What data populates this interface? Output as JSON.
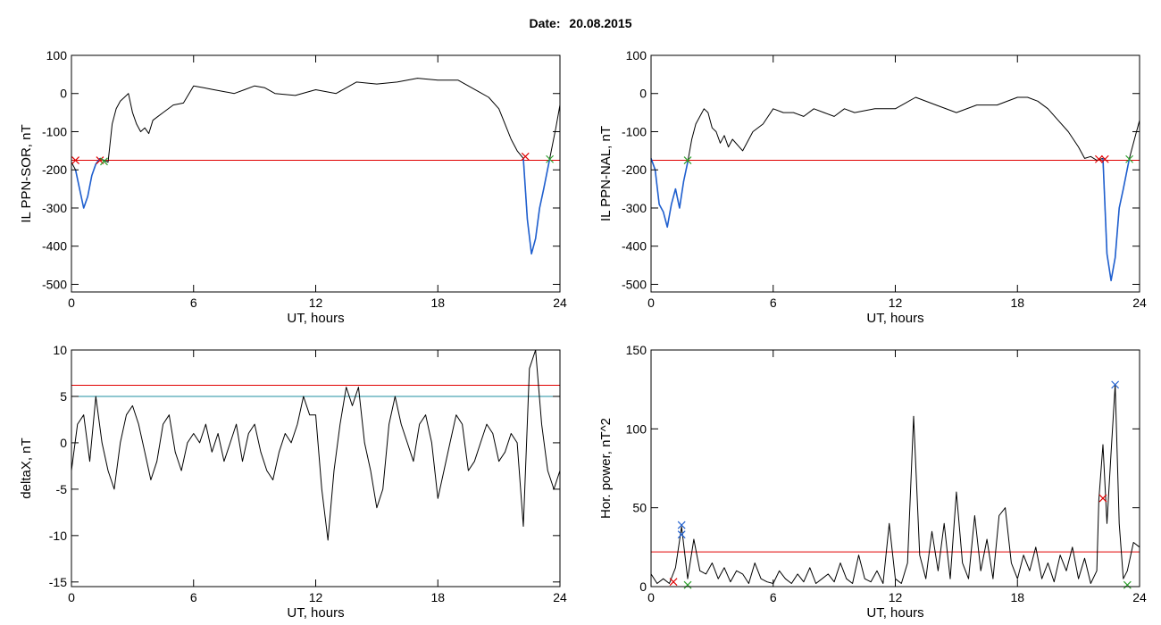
{
  "page_title": {
    "label": "Date:",
    "value": "20.08.2015"
  },
  "chart_data": [
    {
      "type": "line",
      "xlabel": "UT, hours",
      "ylabel": "IL PPN-SOR, nT",
      "xlim": [
        0,
        24
      ],
      "ylim": [
        -520,
        100
      ],
      "xticks": [
        0,
        6,
        12,
        18,
        24
      ],
      "yticks": [
        -500,
        -400,
        -300,
        -200,
        -100,
        0,
        100
      ],
      "series": [
        {
          "color": "#000000",
          "x": [
            0,
            0.2,
            0.4,
            0.6,
            0.8,
            1.0,
            1.2,
            1.4,
            1.6,
            1.8,
            2.0,
            2.2,
            2.4,
            2.6,
            2.8,
            3.0,
            3.2,
            3.4,
            3.6,
            3.8,
            4.0,
            4.5,
            5.0,
            5.5,
            6.0,
            6.5,
            7.0,
            7.5,
            8.0,
            8.5,
            9.0,
            9.5,
            10,
            11,
            12,
            13,
            14,
            15,
            16,
            17,
            18,
            19,
            19.5,
            20,
            20.5,
            21,
            21.3,
            21.6,
            21.9,
            22.2,
            22.4,
            22.6,
            22.8,
            23.0,
            23.2,
            23.5,
            23.8,
            24
          ],
          "y": [
            -180,
            -200,
            -250,
            -300,
            -270,
            -215,
            -185,
            -170,
            -175,
            -180,
            -80,
            -40,
            -20,
            -10,
            0,
            -50,
            -80,
            -100,
            -90,
            -105,
            -70,
            -50,
            -30,
            -25,
            20,
            15,
            10,
            5,
            0,
            10,
            20,
            15,
            0,
            -5,
            10,
            0,
            30,
            25,
            30,
            40,
            35,
            35,
            20,
            5,
            -10,
            -40,
            -80,
            -120,
            -150,
            -170,
            -330,
            -420,
            -380,
            -300,
            -250,
            -170,
            -90,
            -30
          ]
        },
        {
          "color": "#1f5fcf",
          "x": [
            0.2,
            0.4,
            0.6,
            0.8,
            1.0,
            1.2,
            1.4
          ],
          "y": [
            -200,
            -250,
            -300,
            -270,
            -215,
            -185,
            -170
          ]
        },
        {
          "color": "#1f5fcf",
          "x": [
            22.2,
            22.4,
            22.6,
            22.8,
            23.0,
            23.2,
            23.5
          ],
          "y": [
            -170,
            -330,
            -420,
            -380,
            -300,
            -250,
            -170
          ]
        }
      ],
      "hlines": [
        {
          "y": -175,
          "color": "#e00000"
        }
      ],
      "markers": [
        {
          "x": 0.2,
          "y": -175,
          "color": "#e00000"
        },
        {
          "x": 1.4,
          "y": -175,
          "color": "#e00000"
        },
        {
          "x": 1.6,
          "y": -178,
          "color": "#2ca02c"
        },
        {
          "x": 22.3,
          "y": -165,
          "color": "#e00000"
        },
        {
          "x": 23.5,
          "y": -172,
          "color": "#2ca02c"
        }
      ]
    },
    {
      "type": "line",
      "xlabel": "UT, hours",
      "ylabel": "IL PPN-NAL, nT",
      "xlim": [
        0,
        24
      ],
      "ylim": [
        -520,
        100
      ],
      "xticks": [
        0,
        6,
        12,
        18,
        24
      ],
      "yticks": [
        -500,
        -400,
        -300,
        -200,
        -100,
        0,
        100
      ],
      "series": [
        {
          "color": "#000000",
          "x": [
            0,
            0.2,
            0.4,
            0.6,
            0.8,
            1.0,
            1.2,
            1.4,
            1.6,
            1.8,
            2.0,
            2.2,
            2.4,
            2.6,
            2.8,
            3.0,
            3.2,
            3.4,
            3.6,
            3.8,
            4.0,
            4.5,
            5.0,
            5.5,
            6.0,
            6.5,
            7.0,
            7.5,
            8.0,
            8.5,
            9.0,
            9.5,
            10,
            11,
            12,
            13,
            14,
            15,
            16,
            17,
            18,
            18.5,
            19,
            19.5,
            20,
            20.5,
            21,
            21.3,
            21.6,
            21.9,
            22.2,
            22.4,
            22.6,
            22.8,
            23.0,
            23.2,
            23.5,
            23.8,
            24
          ],
          "y": [
            -170,
            -200,
            -290,
            -310,
            -350,
            -290,
            -250,
            -300,
            -230,
            -180,
            -120,
            -80,
            -60,
            -40,
            -50,
            -90,
            -100,
            -130,
            -110,
            -140,
            -120,
            -150,
            -100,
            -80,
            -40,
            -50,
            -50,
            -60,
            -40,
            -50,
            -60,
            -40,
            -50,
            -40,
            -40,
            -10,
            -30,
            -50,
            -30,
            -30,
            -10,
            -10,
            -20,
            -40,
            -70,
            -100,
            -140,
            -170,
            -165,
            -175,
            -170,
            -420,
            -490,
            -430,
            -300,
            -250,
            -170,
            -110,
            -70
          ]
        },
        {
          "color": "#1f5fcf",
          "x": [
            0,
            0.2,
            0.4,
            0.6,
            0.8,
            1.0,
            1.2,
            1.4,
            1.6,
            1.8
          ],
          "y": [
            -170,
            -200,
            -290,
            -310,
            -350,
            -290,
            -250,
            -300,
            -230,
            -180
          ]
        },
        {
          "color": "#1f5fcf",
          "x": [
            22.2,
            22.4,
            22.6,
            22.8,
            23.0,
            23.2,
            23.5
          ],
          "y": [
            -170,
            -420,
            -490,
            -430,
            -300,
            -250,
            -170
          ]
        }
      ],
      "hlines": [
        {
          "y": -175,
          "color": "#e00000"
        }
      ],
      "markers": [
        {
          "x": 1.8,
          "y": -175,
          "color": "#2ca02c"
        },
        {
          "x": 22.0,
          "y": -172,
          "color": "#e00000"
        },
        {
          "x": 22.3,
          "y": -172,
          "color": "#e00000"
        },
        {
          "x": 23.5,
          "y": -172,
          "color": "#2ca02c"
        }
      ]
    },
    {
      "type": "line",
      "xlabel": "UT, hours",
      "ylabel": "deltaX, nT",
      "xlim": [
        0,
        24
      ],
      "ylim": [
        -15.5,
        10
      ],
      "xticks": [
        0,
        6,
        12,
        18,
        24
      ],
      "yticks": [
        -15,
        -10,
        -5,
        0,
        5,
        10
      ],
      "series": [
        {
          "color": "#000000",
          "x": [
            0,
            0.3,
            0.6,
            0.9,
            1.2,
            1.5,
            1.8,
            2.1,
            2.4,
            2.7,
            3.0,
            3.3,
            3.6,
            3.9,
            4.2,
            4.5,
            4.8,
            5.1,
            5.4,
            5.7,
            6.0,
            6.3,
            6.6,
            6.9,
            7.2,
            7.5,
            7.8,
            8.1,
            8.4,
            8.7,
            9.0,
            9.3,
            9.6,
            9.9,
            10.2,
            10.5,
            10.8,
            11.1,
            11.4,
            11.7,
            12.0,
            12.3,
            12.6,
            12.9,
            13.2,
            13.5,
            13.8,
            14.1,
            14.4,
            14.7,
            15.0,
            15.3,
            15.6,
            15.9,
            16.2,
            16.5,
            16.8,
            17.1,
            17.4,
            17.7,
            18.0,
            18.3,
            18.6,
            18.9,
            19.2,
            19.5,
            19.8,
            20.1,
            20.4,
            20.7,
            21.0,
            21.3,
            21.6,
            21.9,
            22.2,
            22.5,
            22.8,
            23.1,
            23.4,
            23.7,
            24
          ],
          "y": [
            -3,
            2,
            3,
            -2,
            5,
            0,
            -3,
            -5,
            0,
            3,
            4,
            2,
            -1,
            -4,
            -2,
            2,
            3,
            -1,
            -3,
            0,
            1,
            0,
            2,
            -1,
            1,
            -2,
            0,
            2,
            -2,
            1,
            2,
            -1,
            -3,
            -4,
            -1,
            1,
            0,
            2,
            5,
            3,
            3,
            -5,
            -10.5,
            -3,
            2,
            6,
            4,
            6,
            0,
            -3,
            -7,
            -5,
            2,
            5,
            2,
            0,
            -2,
            2,
            3,
            0,
            -6,
            -3,
            0,
            3,
            2,
            -3,
            -2,
            0,
            2,
            1,
            -2,
            -1,
            1,
            0,
            -9,
            8,
            10,
            2,
            -3,
            -5,
            -3
          ]
        }
      ],
      "hlines": [
        {
          "y": 6.2,
          "color": "#e00000"
        },
        {
          "y": 5.0,
          "color": "#1f8fa0"
        }
      ],
      "markers": []
    },
    {
      "type": "line",
      "xlabel": "UT, hours",
      "ylabel": "Hor. power, nT^2",
      "xlim": [
        0,
        24
      ],
      "ylim": [
        0,
        150
      ],
      "xticks": [
        0,
        6,
        12,
        18,
        24
      ],
      "yticks": [
        0,
        50,
        100,
        150
      ],
      "series": [
        {
          "color": "#000000",
          "x": [
            0,
            0.3,
            0.6,
            0.9,
            1.2,
            1.5,
            1.8,
            2.1,
            2.4,
            2.7,
            3.0,
            3.3,
            3.6,
            3.9,
            4.2,
            4.5,
            4.8,
            5.1,
            5.4,
            5.7,
            6.0,
            6.3,
            6.6,
            6.9,
            7.2,
            7.5,
            7.8,
            8.1,
            8.4,
            8.7,
            9.0,
            9.3,
            9.6,
            9.9,
            10.2,
            10.5,
            10.8,
            11.1,
            11.4,
            11.7,
            12.0,
            12.3,
            12.6,
            12.9,
            13.2,
            13.5,
            13.8,
            14.1,
            14.4,
            14.7,
            15.0,
            15.3,
            15.6,
            15.9,
            16.2,
            16.5,
            16.8,
            17.1,
            17.4,
            17.7,
            18.0,
            18.3,
            18.6,
            18.9,
            19.2,
            19.5,
            19.8,
            20.1,
            20.4,
            20.7,
            21.0,
            21.3,
            21.6,
            21.9,
            22.0,
            22.2,
            22.4,
            22.6,
            22.8,
            23.0,
            23.2,
            23.4,
            23.7,
            24
          ],
          "y": [
            8,
            2,
            5,
            2,
            12,
            38,
            5,
            30,
            10,
            8,
            15,
            5,
            12,
            3,
            10,
            8,
            2,
            15,
            5,
            3,
            2,
            10,
            5,
            2,
            8,
            3,
            12,
            2,
            5,
            8,
            3,
            15,
            5,
            2,
            20,
            5,
            3,
            10,
            2,
            40,
            5,
            2,
            15,
            108,
            20,
            5,
            35,
            10,
            40,
            5,
            60,
            15,
            5,
            45,
            10,
            30,
            5,
            45,
            50,
            15,
            5,
            20,
            10,
            25,
            5,
            15,
            3,
            20,
            10,
            25,
            5,
            18,
            2,
            10,
            55,
            90,
            40,
            85,
            128,
            40,
            5,
            10,
            28,
            25
          ]
        }
      ],
      "hlines": [
        {
          "y": 22,
          "color": "#e00000"
        }
      ],
      "markers": [
        {
          "x": 1.5,
          "y": 39,
          "color": "#1f5fcf"
        },
        {
          "x": 1.5,
          "y": 33,
          "color": "#1f5fcf"
        },
        {
          "x": 1.1,
          "y": 3,
          "color": "#e00000"
        },
        {
          "x": 1.8,
          "y": 1,
          "color": "#2ca02c"
        },
        {
          "x": 22.2,
          "y": 56,
          "color": "#e00000"
        },
        {
          "x": 22.8,
          "y": 128,
          "color": "#1f5fcf"
        },
        {
          "x": 23.4,
          "y": 1,
          "color": "#2ca02c"
        }
      ]
    }
  ]
}
